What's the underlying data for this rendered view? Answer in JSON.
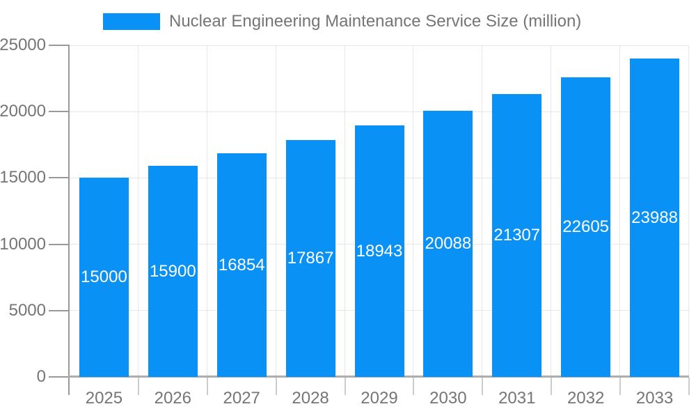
{
  "legend": {
    "label": "Nuclear Engineering Maintenance Service Size (million)"
  },
  "colors": {
    "bar": "#0991F5",
    "bar_label_text": "#FFFFFF",
    "axis_line": "#999999",
    "x_axis_line": "#ADADAD",
    "gridline": "#E6E6E6",
    "minor_tick": "#CCCCCC",
    "label_text": "#757575",
    "background": "#FFFFFF"
  },
  "chart_data": {
    "type": "bar",
    "title": "Nuclear Engineering Maintenance Service Size (million)",
    "series_name": "Nuclear Engineering Maintenance Service Size (million)",
    "categories": [
      "2025",
      "2026",
      "2027",
      "2028",
      "2029",
      "2030",
      "2031",
      "2032",
      "2033"
    ],
    "values": [
      15000,
      15900,
      16854,
      17867,
      18943,
      20088,
      21307,
      22605,
      23988
    ],
    "value_labels": [
      "15000",
      "15900",
      "16854",
      "17867",
      "18943",
      "20088",
      "21307",
      "22605",
      "23988"
    ],
    "xlabel": "",
    "ylabel": "",
    "ylim": [
      0,
      25000
    ],
    "yticks": [
      0,
      5000,
      10000,
      15000,
      20000,
      25000
    ],
    "ytick_labels": [
      "0",
      "5000",
      "10000",
      "15000",
      "20000",
      "25000"
    ],
    "grid": true,
    "legend_position": "top",
    "bar_label_position": "center-inside"
  }
}
